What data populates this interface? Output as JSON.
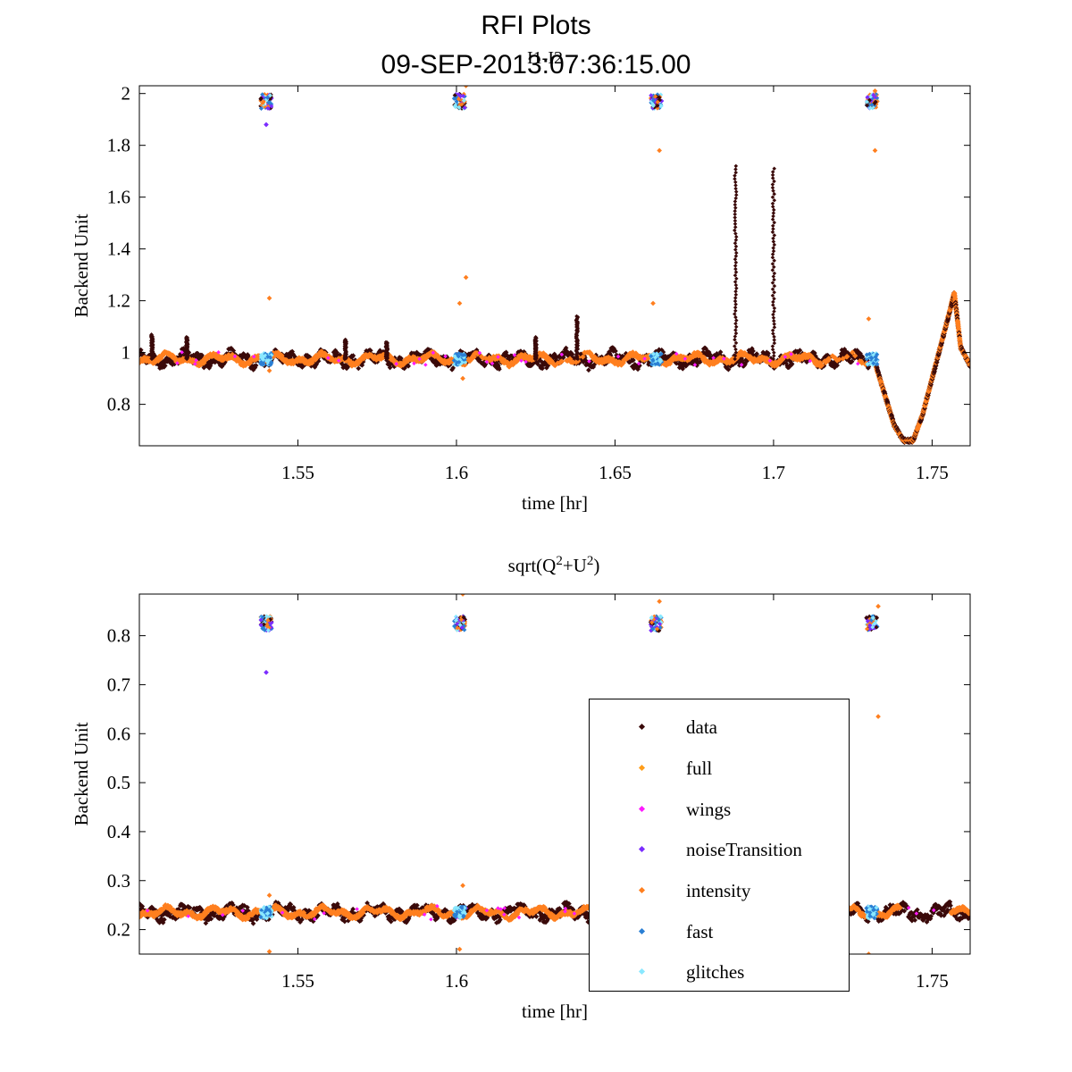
{
  "figure": {
    "title": "RFI Plots",
    "timestamp": "09-SEP-2013:07:36:15.00"
  },
  "legend": {
    "items": [
      {
        "label": "data",
        "color": "#3a0a0a"
      },
      {
        "label": "full",
        "color": "#ff9d1a"
      },
      {
        "label": "wings",
        "color": "#ff1aff"
      },
      {
        "label": "noiseTransition",
        "color": "#7b2cff"
      },
      {
        "label": "intensity",
        "color": "#ff7f1f"
      },
      {
        "label": "fast",
        "color": "#2a7fd4"
      },
      {
        "label": "glitches",
        "color": "#8ae8ff"
      }
    ]
  },
  "chart_data": [
    {
      "type": "scatter",
      "title": "I1-I2",
      "xlabel": "time [hr]",
      "ylabel": "Backend Unit",
      "xlim": [
        1.5,
        1.762
      ],
      "ylim": [
        0.64,
        2.03
      ],
      "xticks": [
        1.55,
        1.6,
        1.65,
        1.7,
        1.75
      ],
      "xtick_labels": [
        "1.55",
        "1.6",
        "1.65",
        "1.7",
        "1.75"
      ],
      "yticks": [
        0.8,
        1,
        1.2,
        1.4,
        1.6,
        1.8,
        2
      ],
      "ytick_labels": [
        "0.8",
        "1",
        "1.2",
        "1.4",
        "1.6",
        "1.8",
        "2"
      ],
      "baseline": 0.975,
      "glitch_times": [
        1.54,
        1.601,
        1.663,
        1.731
      ],
      "glitch_level": 1.97,
      "spikes": [
        {
          "x": 1.688,
          "peak": 1.72
        },
        {
          "x": 1.7,
          "peak": 1.71
        },
        {
          "x": 1.638,
          "peak": 1.14
        },
        {
          "x": 1.625,
          "peak": 1.06
        },
        {
          "x": 1.565,
          "peak": 1.05
        },
        {
          "x": 1.578,
          "peak": 1.04
        },
        {
          "x": 1.515,
          "peak": 1.06
        },
        {
          "x": 1.504,
          "peak": 1.07
        }
      ],
      "tail_curve": {
        "x": [
          1.732,
          1.735,
          1.738,
          1.741,
          1.744,
          1.747,
          1.75,
          1.753,
          1.756,
          1.757,
          1.759,
          1.762
        ],
        "y": [
          0.96,
          0.84,
          0.72,
          0.66,
          0.66,
          0.76,
          0.9,
          1.04,
          1.18,
          1.23,
          1.02,
          0.95
        ]
      },
      "outliers": [
        {
          "x": 1.541,
          "y": 1.21,
          "series": "intensity"
        },
        {
          "x": 1.54,
          "y": 1.88,
          "series": "noiseTransition"
        },
        {
          "x": 1.601,
          "y": 1.19,
          "series": "intensity"
        },
        {
          "x": 1.603,
          "y": 1.29,
          "series": "intensity"
        },
        {
          "x": 1.603,
          "y": 2.03,
          "series": "intensity"
        },
        {
          "x": 1.662,
          "y": 1.19,
          "series": "intensity"
        },
        {
          "x": 1.664,
          "y": 1.78,
          "series": "intensity"
        },
        {
          "x": 1.73,
          "y": 1.13,
          "series": "intensity"
        },
        {
          "x": 1.732,
          "y": 1.78,
          "series": "intensity"
        },
        {
          "x": 1.732,
          "y": 2.01,
          "series": "intensity"
        },
        {
          "x": 1.541,
          "y": 0.93,
          "series": "intensity"
        },
        {
          "x": 1.602,
          "y": 0.9,
          "series": "intensity"
        }
      ]
    },
    {
      "type": "scatter",
      "title": "sqrt(Q2+U2)",
      "title_parts": {
        "a": "sqrt(Q",
        "b": "2",
        "c": "+U",
        "d": "2",
        "e": ")"
      },
      "xlabel": "time [hr]",
      "ylabel": "Backend Unit",
      "xlim": [
        1.5,
        1.762
      ],
      "ylim": [
        0.15,
        0.885
      ],
      "xticks": [
        1.55,
        1.6,
        1.65,
        1.7,
        1.75
      ],
      "xtick_labels": [
        "1.55",
        "1.6",
        "1.65",
        "1.7",
        "1.75"
      ],
      "yticks": [
        0.2,
        0.3,
        0.4,
        0.5,
        0.6,
        0.7,
        0.8
      ],
      "ytick_labels": [
        "0.2",
        "0.3",
        "0.4",
        "0.5",
        "0.6",
        "0.7",
        "0.8"
      ],
      "baseline": 0.235,
      "glitch_times": [
        1.54,
        1.601,
        1.663,
        1.731
      ],
      "glitch_level": 0.825,
      "outliers": [
        {
          "x": 1.54,
          "y": 0.725,
          "series": "noiseTransition"
        },
        {
          "x": 1.541,
          "y": 0.27,
          "series": "intensity"
        },
        {
          "x": 1.541,
          "y": 0.155,
          "series": "intensity"
        },
        {
          "x": 1.602,
          "y": 0.885,
          "series": "intensity"
        },
        {
          "x": 1.602,
          "y": 0.29,
          "series": "intensity"
        },
        {
          "x": 1.601,
          "y": 0.16,
          "series": "intensity"
        },
        {
          "x": 1.664,
          "y": 0.87,
          "series": "intensity"
        },
        {
          "x": 1.733,
          "y": 0.635,
          "series": "intensity"
        },
        {
          "x": 1.733,
          "y": 0.86,
          "series": "intensity"
        },
        {
          "x": 1.73,
          "y": 0.15,
          "series": "intensity"
        }
      ]
    }
  ]
}
